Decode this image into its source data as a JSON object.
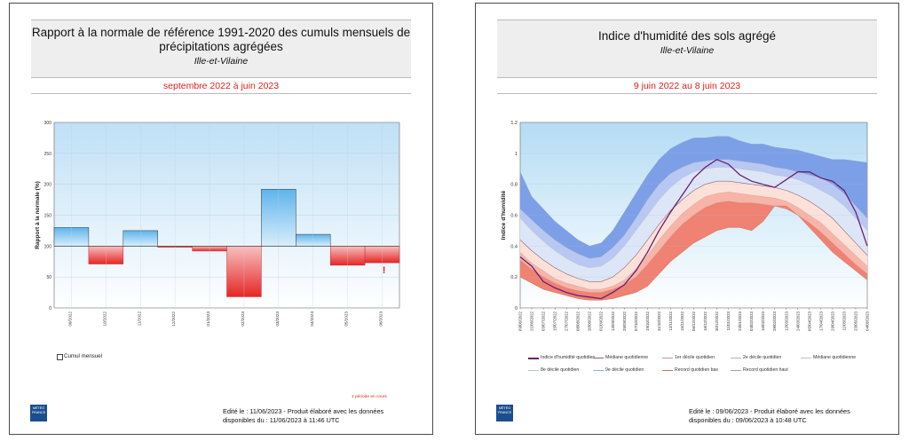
{
  "colors": {
    "neg": "#e83030",
    "pos": "#70bfee",
    "panel_bg": "#cce7f8",
    "title_red": "#e02020",
    "humidity_line": "#6a1f70"
  },
  "left": {
    "title": "Rapport à la normale de référence 1991-2020 des cumuls mensuels de précipitations agrégées",
    "subtitle": "Ille-et-Vilaine",
    "period": "septembre 2022 à juin 2023",
    "legend_label": "Cumul mensuel",
    "footnote": "1 période en cours",
    "edit_line1": "Edité le : 11/06/2023 - Produit élaboré avec les données",
    "edit_line2": "disponibles du : 11/06/2023 à 11:46 UTC",
    "logo": "MÉTÉO FRANCE"
  },
  "right": {
    "title": "Indice d'humidité des sols agrégé",
    "subtitle": "Ille-et-Vilaine",
    "period": "9 juin 2022 au 8 juin 2023",
    "edit_line1": "Edité le : 09/06/2023 - Produit élaboré avec les données",
    "edit_line2": "disponibles du : 09/06/2023 à 10:48 UTC",
    "logo": "MÉTÉO FRANCE",
    "legend": [
      "Indice d'humidité quotidien",
      "Médiane quotidienne",
      "1er décile quotidien",
      "2e décile quotidien",
      "Médiane quotidienne",
      "8e décile quotidien",
      "9e décile quotidien",
      "Record quotidien bas",
      "Record quotidien haut"
    ]
  },
  "chart_data": [
    {
      "type": "bar",
      "title": "Rapport à la normale de référence 1991-2020 des cumuls mensuels de précipitations agrégées",
      "ylabel": "Rapport à la normale (%)",
      "ylim": [
        0,
        300
      ],
      "yticks": [
        0,
        50,
        100,
        150,
        200,
        250,
        300
      ],
      "baseline": 100,
      "categories": [
        "09/2022",
        "10/2022",
        "11/2022",
        "12/2022",
        "01/2023",
        "02/2023",
        "03/2023",
        "04/2023",
        "05/2023",
        "06/2023"
      ],
      "series": [
        {
          "name": "Cumul mensuel",
          "values": [
            130,
            71,
            125,
            98,
            92,
            18,
            192,
            119,
            69,
            73
          ]
        }
      ],
      "annotations": [
        "!"
      ]
    },
    {
      "type": "area",
      "title": "Indice d'humidité des sols agrégé",
      "ylabel": "Indice d'humidité",
      "ylim": [
        0,
        1.2
      ],
      "yticks": [
        "0",
        "0.2",
        "0.4",
        "0.6",
        "0.8",
        "1",
        "1.2"
      ],
      "x": [
        "09/06/2022",
        "21/06/2022",
        "03/07/2022",
        "15/07/2022",
        "27/07/2022",
        "08/08/2022",
        "20/08/2022",
        "01/09/2022",
        "13/09/2022",
        "25/09/2022",
        "07/10/2022",
        "19/10/2022",
        "31/10/2022",
        "12/11/2022",
        "24/11/2022",
        "06/12/2022",
        "18/12/2022",
        "30/12/2022",
        "11/01/2023",
        "23/01/2023",
        "04/02/2023",
        "16/02/2023",
        "28/02/2023",
        "12/03/2023",
        "24/03/2023",
        "05/04/2023",
        "17/04/2023",
        "29/04/2023",
        "11/05/2023",
        "23/05/2023",
        "04/06/2023"
      ],
      "series": [
        {
          "name": "Indice d'humidité quotidien",
          "values": [
            0.33,
            0.27,
            0.17,
            0.13,
            0.1,
            0.08,
            0.07,
            0.06,
            0.1,
            0.15,
            0.24,
            0.36,
            0.5,
            0.62,
            0.73,
            0.84,
            0.91,
            0.96,
            0.93,
            0.86,
            0.82,
            0.8,
            0.78,
            0.83,
            0.88,
            0.88,
            0.84,
            0.82,
            0.76,
            0.62,
            0.4
          ]
        },
        {
          "name": "Record quotidien haut",
          "values": [
            0.88,
            0.72,
            0.64,
            0.56,
            0.5,
            0.44,
            0.4,
            0.42,
            0.5,
            0.62,
            0.74,
            0.86,
            0.96,
            1.03,
            1.07,
            1.1,
            1.1,
            1.11,
            1.11,
            1.08,
            1.06,
            1.06,
            1.04,
            1.03,
            1.02,
            1.0,
            0.98,
            0.96,
            0.96,
            0.95,
            0.94
          ]
        },
        {
          "name": "9e décile quotidien",
          "values": [
            0.64,
            0.57,
            0.5,
            0.44,
            0.39,
            0.35,
            0.32,
            0.33,
            0.39,
            0.47,
            0.58,
            0.7,
            0.8,
            0.87,
            0.91,
            0.94,
            0.95,
            0.96,
            0.96,
            0.95,
            0.94,
            0.93,
            0.91,
            0.9,
            0.88,
            0.86,
            0.84,
            0.8,
            0.74,
            0.66,
            0.58
          ]
        },
        {
          "name": "8e décile quotidien",
          "values": [
            0.58,
            0.5,
            0.43,
            0.37,
            0.32,
            0.28,
            0.26,
            0.27,
            0.32,
            0.4,
            0.5,
            0.6,
            0.7,
            0.78,
            0.84,
            0.88,
            0.9,
            0.91,
            0.91,
            0.9,
            0.89,
            0.88,
            0.86,
            0.85,
            0.83,
            0.8,
            0.76,
            0.72,
            0.66,
            0.58,
            0.5
          ]
        },
        {
          "name": "Médiane quotidienne",
          "values": [
            0.44,
            0.37,
            0.31,
            0.26,
            0.22,
            0.19,
            0.17,
            0.17,
            0.2,
            0.26,
            0.34,
            0.44,
            0.54,
            0.63,
            0.7,
            0.76,
            0.8,
            0.82,
            0.82,
            0.81,
            0.8,
            0.79,
            0.78,
            0.76,
            0.73,
            0.69,
            0.64,
            0.58,
            0.5,
            0.42,
            0.34
          ]
        },
        {
          "name": "2e décile quotidien",
          "values": [
            0.36,
            0.29,
            0.24,
            0.19,
            0.16,
            0.14,
            0.12,
            0.12,
            0.14,
            0.18,
            0.25,
            0.34,
            0.44,
            0.53,
            0.61,
            0.67,
            0.72,
            0.74,
            0.75,
            0.74,
            0.73,
            0.72,
            0.71,
            0.69,
            0.65,
            0.6,
            0.55,
            0.48,
            0.41,
            0.34,
            0.27
          ]
        },
        {
          "name": "1er décile quotidien",
          "values": [
            0.31,
            0.25,
            0.2,
            0.16,
            0.13,
            0.11,
            0.1,
            0.1,
            0.12,
            0.15,
            0.2,
            0.28,
            0.37,
            0.46,
            0.54,
            0.6,
            0.65,
            0.68,
            0.69,
            0.68,
            0.68,
            0.67,
            0.66,
            0.64,
            0.6,
            0.55,
            0.49,
            0.42,
            0.35,
            0.28,
            0.22
          ]
        },
        {
          "name": "Record quotidien bas",
          "values": [
            0.2,
            0.16,
            0.12,
            0.1,
            0.08,
            0.06,
            0.05,
            0.05,
            0.06,
            0.08,
            0.1,
            0.14,
            0.22,
            0.3,
            0.36,
            0.42,
            0.46,
            0.5,
            0.52,
            0.52,
            0.5,
            0.56,
            0.66,
            0.66,
            0.6,
            0.52,
            0.44,
            0.36,
            0.3,
            0.24,
            0.18
          ]
        }
      ]
    }
  ]
}
